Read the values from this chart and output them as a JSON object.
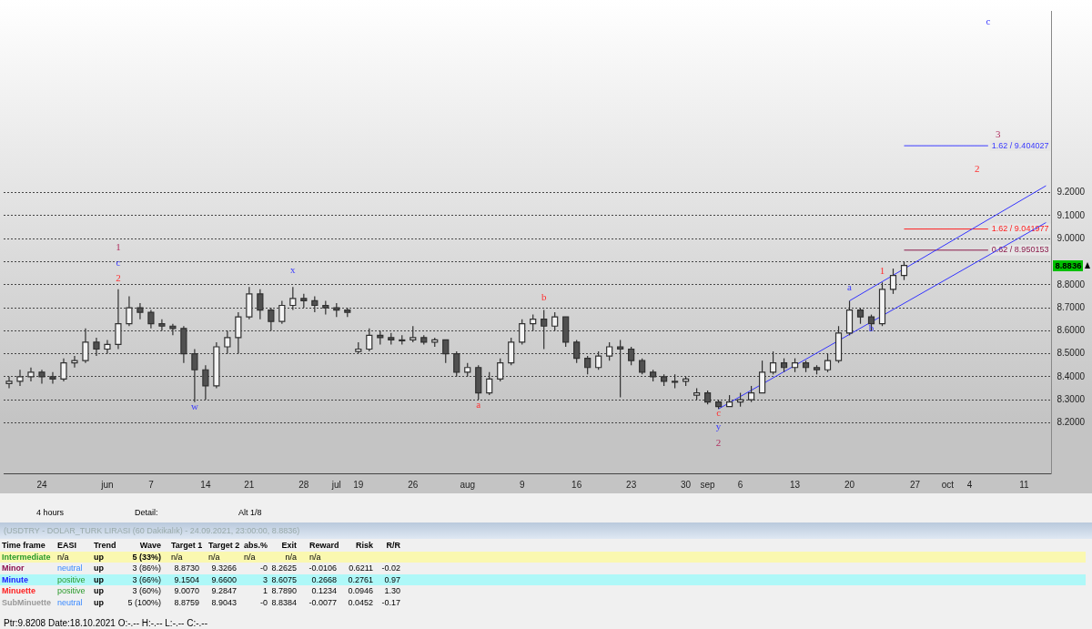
{
  "chart_data": [
    {
      "type": "candlestick",
      "categories": [
        null,
        null,
        null,
        "24",
        null,
        null,
        null,
        null,
        null,
        "jun",
        null,
        null,
        null,
        "7",
        null,
        null,
        null,
        null,
        "14",
        null,
        null,
        null,
        "21",
        null,
        null,
        null,
        null,
        "28",
        null,
        null,
        "jul",
        null,
        "19",
        null,
        null,
        null,
        null,
        "26",
        null,
        null,
        null,
        null,
        "aug",
        null,
        null,
        null,
        null,
        "9",
        null,
        null,
        null,
        null,
        "16",
        null,
        null,
        null,
        null,
        "23",
        null,
        null,
        null,
        null,
        "30",
        null,
        "sep",
        null,
        null,
        "6",
        null,
        null,
        null,
        null,
        "13",
        null,
        null,
        null,
        null,
        "20",
        null,
        null,
        null,
        null,
        null,
        "27",
        null,
        null,
        "oct",
        null,
        "4",
        null,
        null,
        null,
        null,
        "11",
        null,
        null
      ],
      "ohlc": [
        [
          8.37,
          8.4,
          8.35,
          8.38
        ],
        [
          8.38,
          8.43,
          8.36,
          8.4
        ],
        [
          8.4,
          8.44,
          8.38,
          8.42
        ],
        [
          8.42,
          8.43,
          8.37,
          8.4
        ],
        [
          8.4,
          8.42,
          8.37,
          8.39
        ],
        [
          8.39,
          8.48,
          8.38,
          8.46
        ],
        [
          8.46,
          8.49,
          8.44,
          8.47
        ],
        [
          8.47,
          8.61,
          8.46,
          8.55
        ],
        [
          8.55,
          8.57,
          8.49,
          8.52
        ],
        [
          8.52,
          8.56,
          8.5,
          8.54
        ],
        [
          8.54,
          8.78,
          8.52,
          8.63
        ],
        [
          8.63,
          8.75,
          8.62,
          8.7
        ],
        [
          8.7,
          8.72,
          8.65,
          8.68
        ],
        [
          8.68,
          8.69,
          8.61,
          8.63
        ],
        [
          8.63,
          8.65,
          8.6,
          8.62
        ],
        [
          8.62,
          8.63,
          8.58,
          8.61
        ],
        [
          8.61,
          8.62,
          8.46,
          8.5
        ],
        [
          8.5,
          8.52,
          8.29,
          8.43
        ],
        [
          8.43,
          8.45,
          8.3,
          8.36
        ],
        [
          8.36,
          8.55,
          8.35,
          8.53
        ],
        [
          8.53,
          8.6,
          8.5,
          8.57
        ],
        [
          8.57,
          8.68,
          8.5,
          8.66
        ],
        [
          8.66,
          8.79,
          8.65,
          8.76
        ],
        [
          8.76,
          8.78,
          8.65,
          8.69
        ],
        [
          8.69,
          8.7,
          8.6,
          8.64
        ],
        [
          8.64,
          8.73,
          8.63,
          8.71
        ],
        [
          8.71,
          8.79,
          8.69,
          8.74
        ],
        [
          8.74,
          8.76,
          8.7,
          8.73
        ],
        [
          8.73,
          8.75,
          8.68,
          8.71
        ],
        [
          8.71,
          8.73,
          8.67,
          8.7
        ],
        [
          8.7,
          8.72,
          8.66,
          8.69
        ],
        [
          8.69,
          8.7,
          8.66,
          8.68
        ],
        [
          8.51,
          8.55,
          8.5,
          8.52
        ],
        [
          8.52,
          8.61,
          8.51,
          8.58
        ],
        [
          8.58,
          8.6,
          8.54,
          8.57
        ],
        [
          8.57,
          8.59,
          8.54,
          8.56
        ],
        [
          8.56,
          8.58,
          8.54,
          8.56
        ],
        [
          8.56,
          8.62,
          8.55,
          8.57
        ],
        [
          8.57,
          8.58,
          8.54,
          8.55
        ],
        [
          8.55,
          8.57,
          8.53,
          8.56
        ],
        [
          8.56,
          8.56,
          8.46,
          8.5
        ],
        [
          8.5,
          8.51,
          8.4,
          8.42
        ],
        [
          8.42,
          8.46,
          8.4,
          8.44
        ],
        [
          8.44,
          8.45,
          8.3,
          8.33
        ],
        [
          8.33,
          8.42,
          8.32,
          8.39
        ],
        [
          8.39,
          8.48,
          8.38,
          8.46
        ],
        [
          8.46,
          8.57,
          8.45,
          8.55
        ],
        [
          8.55,
          8.65,
          8.54,
          8.63
        ],
        [
          8.63,
          8.67,
          8.6,
          8.65
        ],
        [
          8.65,
          8.69,
          8.52,
          8.62
        ],
        [
          8.62,
          8.68,
          8.6,
          8.66
        ],
        [
          8.66,
          8.66,
          8.53,
          8.55
        ],
        [
          8.55,
          8.56,
          8.46,
          8.48
        ],
        [
          8.48,
          8.49,
          8.41,
          8.44
        ],
        [
          8.44,
          8.51,
          8.43,
          8.49
        ],
        [
          8.49,
          8.55,
          8.47,
          8.53
        ],
        [
          8.53,
          8.56,
          8.31,
          8.52
        ],
        [
          8.52,
          8.53,
          8.45,
          8.47
        ],
        [
          8.47,
          8.48,
          8.41,
          8.42
        ],
        [
          8.42,
          8.43,
          8.38,
          8.4
        ],
        [
          8.4,
          8.41,
          8.36,
          8.38
        ],
        [
          8.38,
          8.41,
          8.35,
          8.38
        ],
        [
          8.38,
          8.4,
          8.36,
          8.39
        ],
        [
          8.32,
          8.35,
          8.3,
          8.33
        ],
        [
          8.33,
          8.34,
          8.28,
          8.29
        ],
        [
          8.29,
          8.3,
          8.26,
          8.27
        ],
        [
          8.27,
          8.32,
          8.27,
          8.29
        ],
        [
          8.29,
          8.33,
          8.27,
          8.3
        ],
        [
          8.3,
          8.36,
          8.29,
          8.33
        ],
        [
          8.33,
          8.47,
          8.33,
          8.42
        ],
        [
          8.42,
          8.51,
          8.41,
          8.46
        ],
        [
          8.46,
          8.48,
          8.42,
          8.44
        ],
        [
          8.44,
          8.48,
          8.42,
          8.46
        ],
        [
          8.46,
          8.47,
          8.42,
          8.44
        ],
        [
          8.44,
          8.45,
          8.41,
          8.43
        ],
        [
          8.43,
          8.5,
          8.42,
          8.47
        ],
        [
          8.47,
          8.62,
          8.46,
          8.59
        ],
        [
          8.59,
          8.73,
          8.58,
          8.69
        ],
        [
          8.69,
          8.7,
          8.63,
          8.66
        ],
        [
          8.66,
          8.67,
          8.6,
          8.63
        ],
        [
          8.63,
          8.81,
          8.62,
          8.78
        ],
        [
          8.78,
          8.87,
          8.76,
          8.84
        ],
        [
          8.84,
          8.9,
          8.82,
          8.8836
        ],
        null,
        null,
        null,
        null,
        null,
        null,
        null,
        null,
        null,
        null,
        null,
        null,
        null
      ],
      "series": [
        {
          "type": "line",
          "color": "#3333ff",
          "values": [
            null,
            null,
            null,
            null,
            null,
            null,
            null,
            null,
            null,
            null,
            null,
            null,
            null,
            null,
            null,
            null,
            null,
            null,
            null,
            null,
            null,
            null,
            null,
            null,
            null,
            null,
            null,
            null,
            null,
            null,
            null,
            null,
            null,
            null,
            null,
            null,
            null,
            null,
            null,
            null,
            null,
            null,
            null,
            null,
            null,
            null,
            null,
            null,
            null,
            null,
            null,
            null,
            null,
            null,
            null,
            null,
            null,
            null,
            null,
            null,
            null,
            null,
            null,
            null,
            null,
            8.26,
            null,
            null,
            null,
            null,
            null,
            null,
            null,
            null,
            null,
            null,
            null,
            null,
            null,
            null,
            null,
            null,
            null,
            null,
            null,
            null,
            null,
            null,
            null,
            null,
            null,
            null,
            null,
            null,
            null,
            9.07
          ]
        },
        {
          "type": "line",
          "color": "#3333ff",
          "values": [
            null,
            null,
            null,
            null,
            null,
            null,
            null,
            null,
            null,
            null,
            null,
            null,
            null,
            null,
            null,
            null,
            null,
            null,
            null,
            null,
            null,
            null,
            null,
            null,
            null,
            null,
            null,
            null,
            null,
            null,
            null,
            null,
            null,
            null,
            null,
            null,
            null,
            null,
            null,
            null,
            null,
            null,
            null,
            null,
            null,
            null,
            null,
            null,
            null,
            null,
            null,
            null,
            null,
            null,
            null,
            null,
            null,
            null,
            null,
            null,
            null,
            null,
            null,
            null,
            null,
            null,
            null,
            null,
            null,
            null,
            null,
            null,
            null,
            null,
            null,
            null,
            null,
            8.73,
            null,
            null,
            null,
            null,
            null,
            null,
            null,
            null,
            null,
            null,
            null,
            null,
            null,
            null,
            null,
            null,
            null,
            9.23
          ]
        }
      ],
      "ylim": [
        7.98,
        9.99
      ],
      "yticks": [
        {
          "value": 8.2,
          "label": "8.2000"
        },
        {
          "value": 8.3,
          "label": "8.3000"
        },
        {
          "value": 8.4,
          "label": "8.4000"
        },
        {
          "value": 8.5,
          "label": "8.5000"
        },
        {
          "value": 8.6,
          "label": "8.6000"
        },
        {
          "value": 8.7,
          "label": "8.7000"
        },
        {
          "value": 8.8,
          "label": "8.8000"
        },
        {
          "value": 8.9,
          "label": null
        },
        {
          "value": 9.0,
          "label": "9.0000"
        },
        {
          "value": 9.1,
          "label": "9.1000"
        },
        {
          "value": 9.2,
          "label": "9.2000"
        }
      ],
      "grid": "y",
      "legend": false,
      "marker": "none",
      "ref_lines": [
        {
          "axis": "y",
          "value": 9.404027,
          "label": "1.62 / 9.404027",
          "color": "#3a3aff"
        },
        {
          "axis": "y",
          "value": 9.041977,
          "label": "1.62 / 9.041977",
          "color": "#ff2020"
        },
        {
          "axis": "y",
          "value": 8.950153,
          "label": "0.62 / 8.950153",
          "color": "#8b1a4a"
        }
      ],
      "annotations": [
        "1",
        "c",
        "2",
        "w",
        "x",
        "a",
        "b",
        "c",
        "y",
        "2",
        "a",
        "b",
        "1",
        "c",
        "3",
        "2",
        {
          "text": "8.8836",
          "y": 8.8836
        }
      ]
    },
    {
      "type": "other",
      "title": "(USDTRY - DOLAR_TURK LIRASI (60 Dakikalık) - 24.09.2021, 23:00:00, 8.8836)",
      "annotations": [
        "4 hours",
        "Detail:",
        "Alt 1/8",
        "Time frame\tEASI\tTrend\tWave\tTarget 1\tTarget 2\tabs.%\tExit\tReward\tRisk\tR/R",
        "Intermediate\tn/a\tup\t5 (33%)\tn/a\tn/a\tn/a\tn/a\tn/a",
        "Minor\tneutral\tup\t3 (86%)\t8.8730\t9.3266\t-0\t8.2625\t-0.0106\t0.6211\t-0.02",
        "Minute\tpositive\tup\t3 (66%)\t9.1504\t9.6600\t3\t8.6075\t0.2668\t0.2761\t0.97",
        "Minuette\tpositive\tup\t3 (60%)\t9.0070\t9.2847\t1\t8.7890\t0.1234\t0.0946\t1.30",
        "SubMinuette\tneutral\tup\t5 (100%)\t8.8759\t8.9043\t-0\t8.8384\t-0.0077\t0.0452\t-0.17",
        "Ptr:9.8208  Date:18.10.2021  O:-.--  H:-.--  L:-.--  C:-.--"
      ]
    }
  ]
}
